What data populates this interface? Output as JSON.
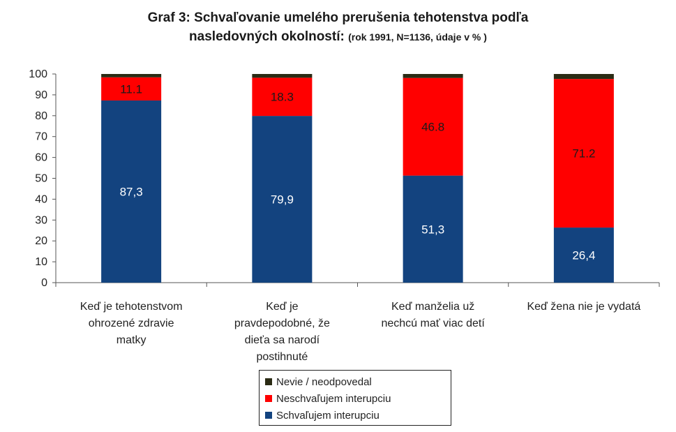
{
  "title": {
    "line1": "Graf 3: Schvaľovanie umelého prerušenia tehotenstva podľa",
    "line2_main": "nasledovných okolností:",
    "line2_sub": "(rok 1991, N=1136, údaje v % )"
  },
  "colors": {
    "schvalujem": "#13437f",
    "neschvalujem": "#ff0000",
    "nevie": "#2b2b14"
  },
  "chart_data": {
    "type": "bar",
    "stacked": true,
    "ylim": [
      0,
      100
    ],
    "yticks": [
      0,
      10,
      20,
      30,
      40,
      50,
      60,
      70,
      80,
      90,
      100
    ],
    "categories": [
      [
        "Keď je tehotenstvom",
        "ohrozené zdravie",
        "matky"
      ],
      [
        "Keď je",
        "pravdepodobné, že",
        "dieťa sa narodí",
        "postihnuté"
      ],
      [
        "Keď manželia už",
        "nechcú mať viac detí"
      ],
      [
        "Keď žena nie je vydatá"
      ]
    ],
    "series": [
      {
        "name": "Schvaľujem interupciu",
        "color": "#13437f",
        "values": [
          87.3,
          79.9,
          51.3,
          26.4
        ],
        "labels": [
          "87,3",
          "79,9",
          "51,3",
          "26,4"
        ]
      },
      {
        "name": "Neschvaľujem interupciu",
        "color": "#ff0000",
        "values": [
          11.1,
          18.3,
          46.8,
          71.2
        ],
        "labels": [
          "11.1",
          "18.3",
          "46.8",
          "71.2"
        ]
      },
      {
        "name": "Nevie / neodpovedal",
        "color": "#2b2b14",
        "values": [
          1.6,
          1.8,
          1.9,
          2.4
        ],
        "labels": [
          "",
          "",
          "",
          ""
        ]
      }
    ],
    "legend": [
      "Nevie / neodpovedal",
      "Neschvaľujem interupciu",
      "Schvaľujem interupciu"
    ],
    "legend_position": "bottom"
  }
}
